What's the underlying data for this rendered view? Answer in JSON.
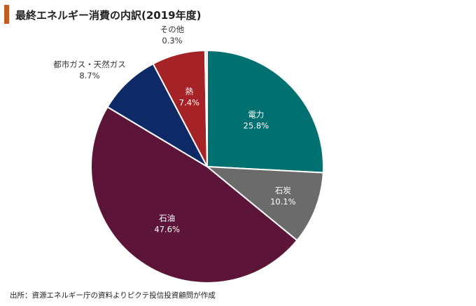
{
  "chart_data": {
    "type": "pie",
    "title": "最終エネルギー消費の内訳(2019年度)",
    "unit": "%",
    "slices": [
      {
        "name": "電力",
        "value": 25.8,
        "value_label": "25.8%",
        "color": "#007070",
        "label_inside": true
      },
      {
        "name": "石炭",
        "value": 10.1,
        "value_label": "10.1%",
        "color": "#6b6b6b",
        "label_inside": true
      },
      {
        "name": "石油",
        "value": 47.6,
        "value_label": "47.6%",
        "color": "#5c1538",
        "label_inside": true
      },
      {
        "name": "都市ガス・天然ガス",
        "value": 8.7,
        "value_label": "8.7%",
        "color": "#0e2a66",
        "label_inside": false
      },
      {
        "name": "熱",
        "value": 7.4,
        "value_label": "7.4%",
        "color": "#a52226",
        "label_inside": true
      },
      {
        "name": "その他",
        "value": 0.3,
        "value_label": "0.3%",
        "color": "#d9d9d9",
        "label_inside": false
      }
    ],
    "start": "12 o'clock",
    "direction": "clockwise",
    "legend": "none"
  },
  "source": "出所：資源エネルギー庁の資料よりピクテ投信投資顧問が作成"
}
